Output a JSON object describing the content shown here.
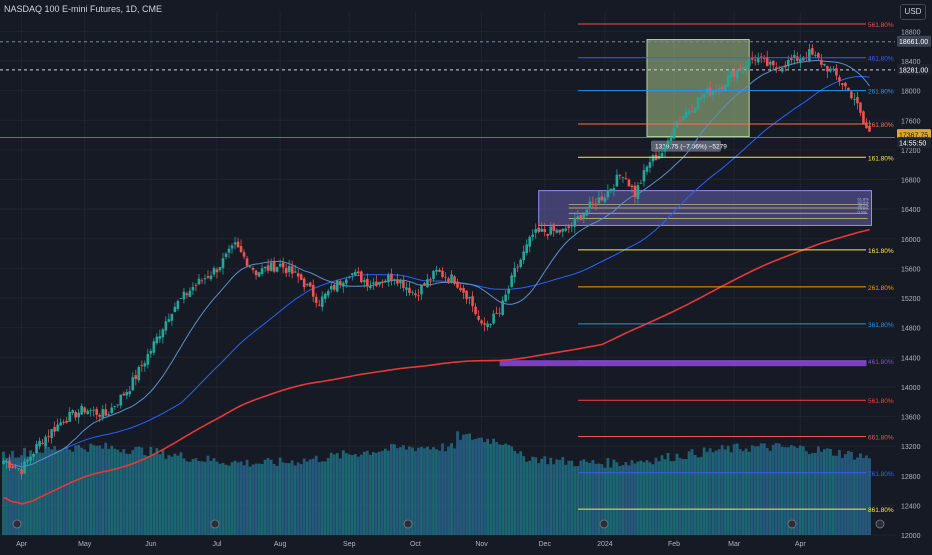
{
  "header": {
    "title": "NASDAQ 100 E-mini Futures, 1D, CME",
    "currency": "USD"
  },
  "colors": {
    "background": "#161a25",
    "up": "#26a69a",
    "down": "#ef5350",
    "ma200": "#e53935",
    "ma50": "#2962ff",
    "ma20": "#5b8fc9",
    "volume": "#2b7a99",
    "gold": "#ffc107"
  },
  "chart_data": {
    "type": "candlestick",
    "ylim": [
      12000,
      18900
    ],
    "y_ticks": [
      12000,
      12400,
      12800,
      13200,
      13600,
      14000,
      14400,
      14800,
      15200,
      15600,
      16000,
      16400,
      16800,
      17200,
      17600,
      18000,
      18400,
      18800
    ],
    "x_months": [
      "Apr",
      "May",
      "Jun",
      "Jul",
      "Aug",
      "Sep",
      "Oct",
      "Nov",
      "Dec",
      "2024",
      "Feb",
      "Mar",
      "Apr"
    ],
    "x_month_index": [
      6,
      27,
      49,
      71,
      92,
      115,
      137,
      159,
      180,
      200,
      223,
      243,
      265
    ],
    "total_bars": 292,
    "anchors": [
      [
        0,
        13000
      ],
      [
        6,
        12880
      ],
      [
        12,
        13250
      ],
      [
        20,
        13560
      ],
      [
        27,
        13700
      ],
      [
        34,
        13620
      ],
      [
        42,
        14000
      ],
      [
        49,
        14500
      ],
      [
        56,
        15050
      ],
      [
        63,
        15350
      ],
      [
        71,
        15600
      ],
      [
        77,
        15900
      ],
      [
        84,
        15550
      ],
      [
        92,
        15650
      ],
      [
        99,
        15450
      ],
      [
        105,
        15150
      ],
      [
        115,
        15550
      ],
      [
        122,
        15400
      ],
      [
        130,
        15500
      ],
      [
        137,
        15250
      ],
      [
        144,
        15550
      ],
      [
        150,
        15450
      ],
      [
        155,
        15200
      ],
      [
        159,
        14800
      ],
      [
        165,
        15000
      ],
      [
        170,
        15550
      ],
      [
        176,
        16050
      ],
      [
        180,
        16100
      ],
      [
        187,
        16100
      ],
      [
        194,
        16400
      ],
      [
        200,
        16600
      ],
      [
        206,
        16900
      ],
      [
        210,
        16600
      ],
      [
        215,
        17050
      ],
      [
        220,
        17200
      ],
      [
        223,
        17550
      ],
      [
        228,
        17750
      ],
      [
        233,
        17950
      ],
      [
        238,
        18050
      ],
      [
        243,
        18250
      ],
      [
        250,
        18450
      ],
      [
        256,
        18300
      ],
      [
        262,
        18400
      ],
      [
        268,
        18500
      ],
      [
        273,
        18350
      ],
      [
        278,
        18150
      ],
      [
        283,
        17900
      ],
      [
        286,
        17550
      ],
      [
        289,
        17370
      ]
    ],
    "price_tags": [
      {
        "label": "18661.00",
        "value": 18661
      },
      {
        "label": "18281.00",
        "value": 18281
      },
      {
        "label": "17367.75",
        "value": 17400
      },
      {
        "label": "14:55:50",
        "value": 17290
      }
    ],
    "fib_levels_upper": [
      {
        "label": "561.80%",
        "value": 18900,
        "color": "#ef5350"
      },
      {
        "label": "461.80%",
        "value": 18445,
        "color": "#3d5afe"
      },
      {
        "label": "261.80%",
        "value": 18000,
        "color": "#2196f3"
      },
      {
        "label": "261.80%",
        "value": 17550,
        "color": "#ff7043"
      },
      {
        "label": "161.80%",
        "value": 17100,
        "color": "#ffeb3b"
      }
    ],
    "fib_levels_lower": [
      {
        "label": "161.80%",
        "value": 15850,
        "color": "#ffeb3b"
      },
      {
        "label": "261.80%",
        "value": 15350,
        "color": "#ff9800"
      },
      {
        "label": "361.80%",
        "value": 14850,
        "color": "#2196f3"
      },
      {
        "label": "461.80%",
        "value": 14350,
        "color": "#7e57c2"
      },
      {
        "label": "561.80%",
        "value": 13820,
        "color": "#f44336"
      },
      {
        "label": "661.80%",
        "value": 13330,
        "color": "#ef5350"
      },
      {
        "label": "761.80%",
        "value": 12840,
        "color": "#3d5afe"
      },
      {
        "label": "861.80%",
        "value": 12350,
        "color": "#ffeb3b"
      }
    ],
    "zone_box": {
      "x0": 178,
      "x1": 292,
      "y_low": 16180,
      "y_high": 16650
    },
    "zone_mini_labels": [
      "61.8%",
      "50.0%",
      "38.2%",
      "23.6%",
      "0.0%"
    ],
    "horizontal_band": {
      "x0": 165,
      "x1": 287,
      "value": 14320
    },
    "measure_box": {
      "x0": 214,
      "x1": 248,
      "y_low": 17380,
      "y_high": 18690
    },
    "measure_label": "1319.75 (−7.06%) −5279",
    "horizontal_line_value": 17367.75
  }
}
